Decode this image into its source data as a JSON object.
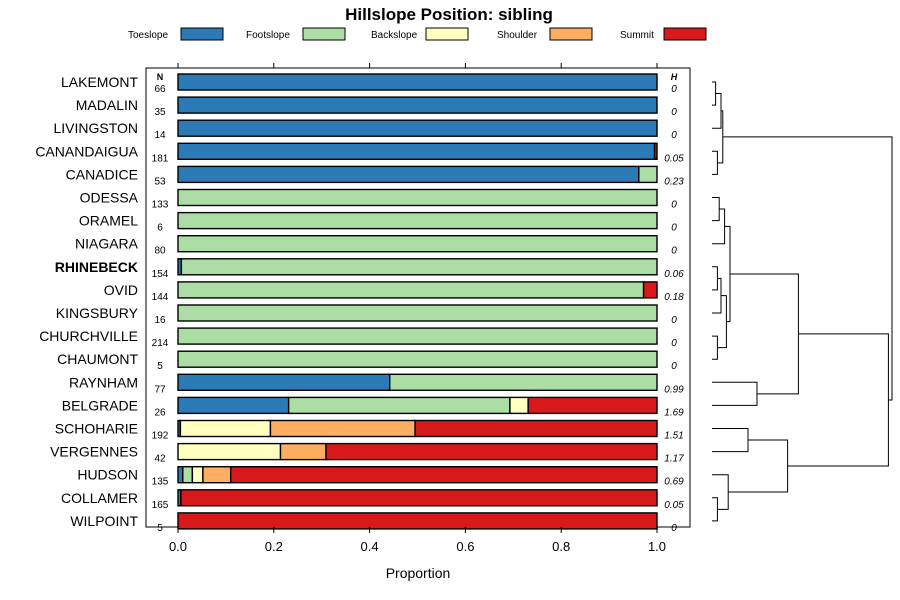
{
  "chart_data": {
    "type": "bar",
    "orientation": "horizontal-stacked",
    "title": "Hillslope Position: sibling",
    "xlabel": "Proportion",
    "xlim": [
      0,
      1
    ],
    "xticks": [
      "0.0",
      "0.2",
      "0.4",
      "0.6",
      "0.8",
      "1.0"
    ],
    "n_header": "N",
    "h_header": "H",
    "legend": [
      {
        "name": "Toeslope",
        "color": "#2C7BB6"
      },
      {
        "name": "Footslope",
        "color": "#ABDDA4"
      },
      {
        "name": "Backslope",
        "color": "#FFFFBF"
      },
      {
        "name": "Shoulder",
        "color": "#FDAE61"
      },
      {
        "name": "Summit",
        "color": "#D7191C"
      }
    ],
    "highlight": "RHINEBECK",
    "rows": [
      {
        "name": "LAKEMONT",
        "n": "66",
        "h": "0",
        "values": [
          1,
          0,
          0,
          0,
          0
        ]
      },
      {
        "name": "MADALIN",
        "n": "35",
        "h": "0",
        "values": [
          1,
          0,
          0,
          0,
          0
        ]
      },
      {
        "name": "LIVINGSTON",
        "n": "14",
        "h": "0",
        "values": [
          1,
          0,
          0,
          0,
          0
        ]
      },
      {
        "name": "CANANDAIGUA",
        "n": "181",
        "h": "0.05",
        "values": [
          0.995,
          0,
          0,
          0,
          0.005
        ]
      },
      {
        "name": "CANADICE",
        "n": "53",
        "h": "0.23",
        "values": [
          0.962,
          0.038,
          0,
          0,
          0
        ]
      },
      {
        "name": "ODESSA",
        "n": "133",
        "h": "0",
        "values": [
          0,
          1,
          0,
          0,
          0
        ]
      },
      {
        "name": "ORAMEL",
        "n": "6",
        "h": "0",
        "values": [
          0,
          1,
          0,
          0,
          0
        ]
      },
      {
        "name": "NIAGARA",
        "n": "80",
        "h": "0",
        "values": [
          0,
          1,
          0,
          0,
          0
        ]
      },
      {
        "name": "RHINEBECK",
        "n": "154",
        "h": "0.06",
        "values": [
          0.007,
          0.993,
          0,
          0,
          0
        ]
      },
      {
        "name": "OVID",
        "n": "144",
        "h": "0.18",
        "values": [
          0,
          0.972,
          0,
          0,
          0.028
        ]
      },
      {
        "name": "KINGSBURY",
        "n": "16",
        "h": "0",
        "values": [
          0,
          1,
          0,
          0,
          0
        ]
      },
      {
        "name": "CHURCHVILLE",
        "n": "214",
        "h": "0",
        "values": [
          0,
          1,
          0,
          0,
          0
        ]
      },
      {
        "name": "CHAUMONT",
        "n": "5",
        "h": "0",
        "values": [
          0,
          1,
          0,
          0,
          0
        ]
      },
      {
        "name": "RAYNHAM",
        "n": "77",
        "h": "0.99",
        "values": [
          0.442,
          0.558,
          0,
          0,
          0
        ]
      },
      {
        "name": "BELGRADE",
        "n": "26",
        "h": "1.69",
        "values": [
          0.231,
          0.462,
          0.038,
          0,
          0.269
        ]
      },
      {
        "name": "SCHOHARIE",
        "n": "192",
        "h": "1.51",
        "values": [
          0.005,
          0,
          0.188,
          0.302,
          0.505
        ]
      },
      {
        "name": "VERGENNES",
        "n": "42",
        "h": "1.17",
        "values": [
          0,
          0,
          0.214,
          0.095,
          0.691
        ]
      },
      {
        "name": "HUDSON",
        "n": "135",
        "h": "0.69",
        "values": [
          0.01,
          0.02,
          0.022,
          0.058,
          0.89
        ]
      },
      {
        "name": "COLLAMER",
        "n": "165",
        "h": "0.05",
        "values": [
          0.006,
          0,
          0,
          0,
          0.994
        ]
      },
      {
        "name": "WILPOINT",
        "n": "5",
        "h": "0",
        "values": [
          0,
          0,
          0,
          0,
          1
        ]
      }
    ]
  }
}
